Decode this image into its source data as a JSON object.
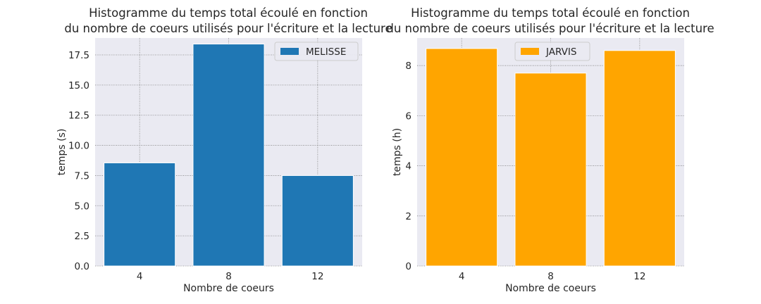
{
  "chart_data": [
    {
      "type": "bar",
      "title_line1": "Histogramme du temps total écoulé en fonction",
      "title_line2": "du nombre de coeurs utilisés pour l'écriture et la lecture",
      "xlabel": "Nombre de coeurs",
      "ylabel": "temps (s)",
      "categories": [
        "4",
        "8",
        "12"
      ],
      "series": [
        {
          "name": "MELISSE",
          "values": [
            8.55,
            18.4,
            7.5
          ],
          "color": "#1f77b4"
        }
      ],
      "ylim": [
        0,
        18.9
      ],
      "yticks": [
        0,
        2.5,
        5,
        7.5,
        10,
        12.5,
        15,
        17.5
      ],
      "ytick_labels": [
        "0.0",
        "2.5",
        "5.0",
        "7.5",
        "10.0",
        "12.5",
        "15.0",
        "17.5"
      ],
      "legend_position": "upper right",
      "grid": true
    },
    {
      "type": "bar",
      "title_line1": "Histogramme du temps total écoulé en fonction",
      "title_line2": "du nombre de coeurs utilisés pour l'écriture et la lecture",
      "xlabel": "Nombre de coeurs",
      "ylabel": "temps (h)",
      "categories": [
        "4",
        "8",
        "12"
      ],
      "series": [
        {
          "name": "JARVIS",
          "values": [
            8.68,
            7.7,
            8.6
          ],
          "color": "#ffa500"
        }
      ],
      "ylim": [
        0,
        9.1
      ],
      "yticks": [
        0,
        2,
        4,
        6,
        8
      ],
      "ytick_labels": [
        "0",
        "2",
        "4",
        "6",
        "8"
      ],
      "legend_position": "upper center",
      "grid": true
    }
  ],
  "colors": {
    "axes_background": "#eaeaf2",
    "grid": "#7f7f7f",
    "text": "#262626"
  }
}
